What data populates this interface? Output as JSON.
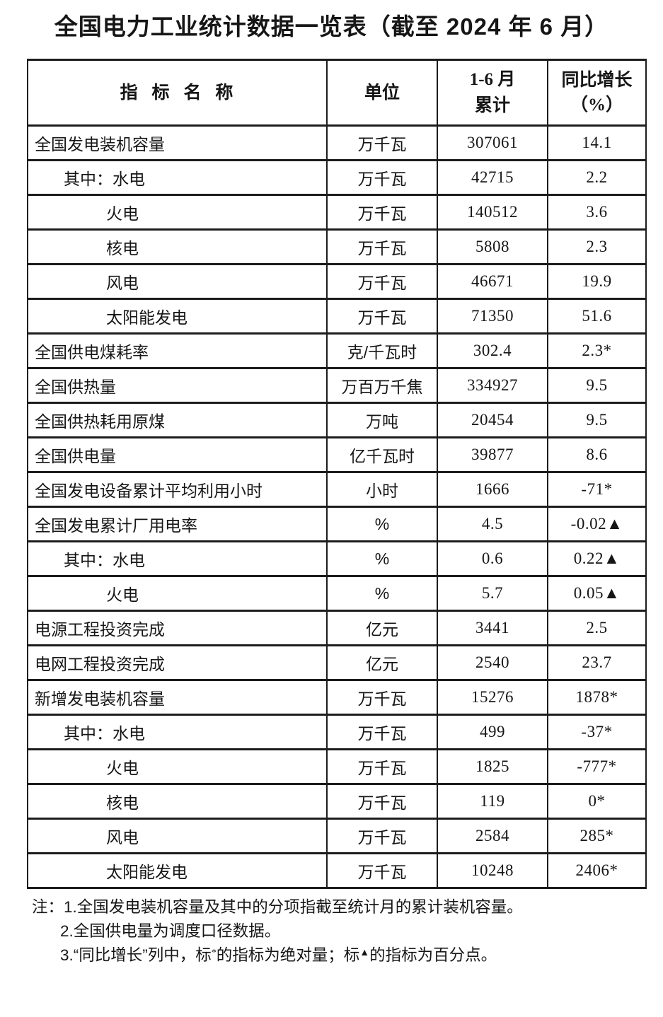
{
  "title": "全国电力工业统计数据一览表（截至 2024 年 6 月）",
  "table": {
    "headers": {
      "indicator": "指  标  名  称",
      "unit": "单位",
      "period_line1": "1-6 月",
      "period_line2": "累计",
      "growth_line1": "同比增长",
      "growth_line2": "（%）"
    },
    "rows": [
      {
        "indicator": "全国发电装机容量",
        "indent": 0,
        "unit": "万千瓦",
        "value": "307061",
        "growth": "14.1"
      },
      {
        "indicator": "其中：水电",
        "indent": 1,
        "unit": "万千瓦",
        "value": "42715",
        "growth": "2.2"
      },
      {
        "indicator": "火电",
        "indent": 2,
        "unit": "万千瓦",
        "value": "140512",
        "growth": "3.6"
      },
      {
        "indicator": "核电",
        "indent": 2,
        "unit": "万千瓦",
        "value": "5808",
        "growth": "2.3"
      },
      {
        "indicator": "风电",
        "indent": 2,
        "unit": "万千瓦",
        "value": "46671",
        "growth": "19.9"
      },
      {
        "indicator": "太阳能发电",
        "indent": 2,
        "unit": "万千瓦",
        "value": "71350",
        "growth": "51.6"
      },
      {
        "indicator": "全国供电煤耗率",
        "indent": 0,
        "unit": "克/千瓦时",
        "value": "302.4",
        "growth": "2.3*"
      },
      {
        "indicator": "全国供热量",
        "indent": 0,
        "unit": "万百万千焦",
        "value": "334927",
        "growth": "9.5"
      },
      {
        "indicator": "全国供热耗用原煤",
        "indent": 0,
        "unit": "万吨",
        "value": "20454",
        "growth": "9.5"
      },
      {
        "indicator": "全国供电量",
        "indent": 0,
        "unit": "亿千瓦时",
        "value": "39877",
        "growth": "8.6"
      },
      {
        "indicator": "全国发电设备累计平均利用小时",
        "indent": 0,
        "unit": "小时",
        "value": "1666",
        "growth": "-71*"
      },
      {
        "indicator": "全国发电累计厂用电率",
        "indent": 0,
        "unit": "%",
        "value": "4.5",
        "growth": "-0.02▲"
      },
      {
        "indicator": "其中：水电",
        "indent": 1,
        "unit": "%",
        "value": "0.6",
        "growth": "0.22▲"
      },
      {
        "indicator": "火电",
        "indent": 2,
        "unit": "%",
        "value": "5.7",
        "growth": "0.05▲"
      },
      {
        "indicator": "电源工程投资完成",
        "indent": 0,
        "unit": "亿元",
        "value": "3441",
        "growth": "2.5"
      },
      {
        "indicator": "电网工程投资完成",
        "indent": 0,
        "unit": "亿元",
        "value": "2540",
        "growth": "23.7"
      },
      {
        "indicator": "新增发电装机容量",
        "indent": 0,
        "unit": "万千瓦",
        "value": "15276",
        "growth": "1878*"
      },
      {
        "indicator": "其中：水电",
        "indent": 1,
        "unit": "万千瓦",
        "value": "499",
        "growth": "-37*"
      },
      {
        "indicator": "火电",
        "indent": 2,
        "unit": "万千瓦",
        "value": "1825",
        "growth": "-777*"
      },
      {
        "indicator": "核电",
        "indent": 2,
        "unit": "万千瓦",
        "value": "119",
        "growth": "0*"
      },
      {
        "indicator": "风电",
        "indent": 2,
        "unit": "万千瓦",
        "value": "2584",
        "growth": "285*"
      },
      {
        "indicator": "太阳能发电",
        "indent": 2,
        "unit": "万千瓦",
        "value": "10248",
        "growth": "2406*"
      }
    ]
  },
  "notes": {
    "label": "注：",
    "note1": "1.全国发电装机容量及其中的分项指截至统计月的累计装机容量。",
    "note2": "2.全国供电量为调度口径数据。",
    "note3": {
      "p1": "3.“同比增长”列中，标",
      "sup1": "*",
      "p2": "的指标为绝对量；标",
      "sup2": "▲",
      "p3": "的指标为百分点。"
    }
  }
}
